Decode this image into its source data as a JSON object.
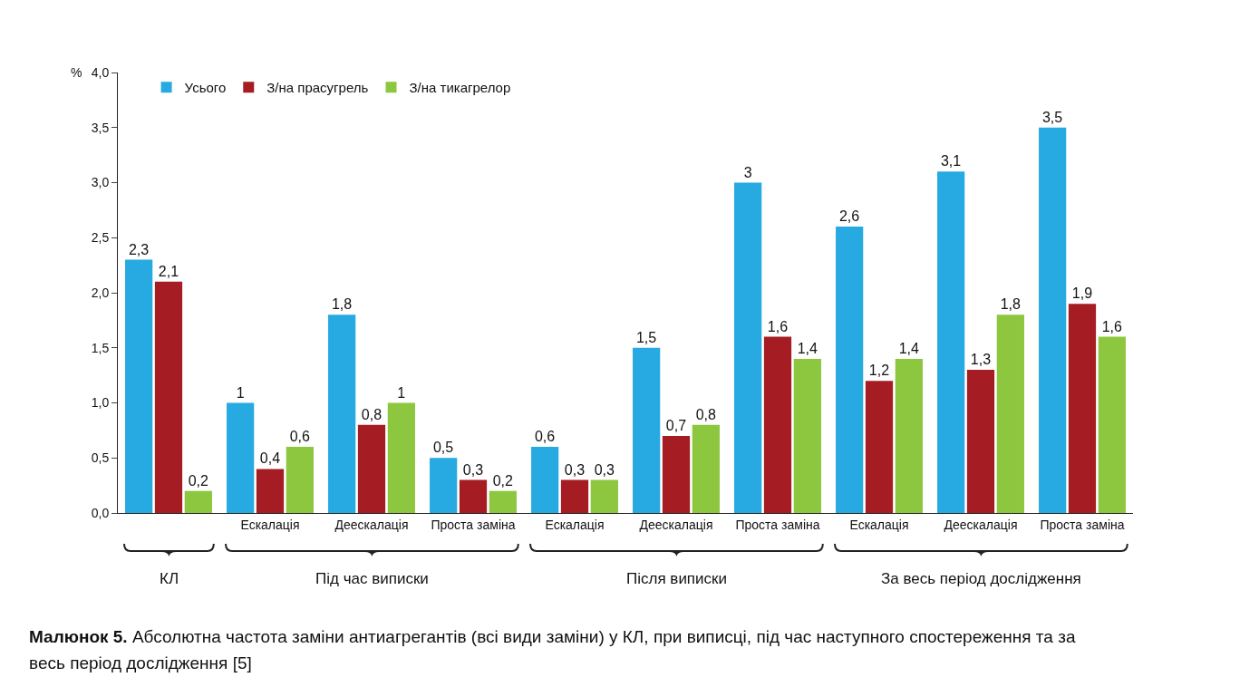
{
  "chart_data": {
    "type": "bar",
    "ylabel": "%",
    "categories": [
      null,
      "Ескалація",
      "Деескалація",
      "Проста заміна",
      "Ескалація",
      "Деескалація",
      "Проста заміна",
      "Ескалація",
      "Деескалація",
      "Проста заміна"
    ],
    "series": [
      {
        "name": "Усього",
        "color": "#27aae1",
        "values": [
          2.3,
          1,
          1.8,
          0.5,
          0.6,
          1.5,
          3,
          2.6,
          3.1,
          3.5
        ],
        "value_labels": [
          "2,3",
          "1",
          "1,8",
          "0,5",
          "0,6",
          "1,5",
          "3",
          "2,6",
          "3,1",
          "3,5"
        ]
      },
      {
        "name": "З/на прасугрель",
        "color": "#a51d23",
        "values": [
          2.1,
          0.4,
          0.8,
          0.3,
          0.3,
          0.7,
          1.6,
          1.2,
          1.3,
          1.9
        ],
        "value_labels": [
          "2,1",
          "0,4",
          "0,8",
          "0,3",
          "0,3",
          "0,7",
          "1,6",
          "1,2",
          "1,3",
          "1,9"
        ]
      },
      {
        "name": "З/на тикагрелор",
        "color": "#8dc63f",
        "values": [
          0.2,
          0.6,
          1,
          0.2,
          0.3,
          0.8,
          1.4,
          1.4,
          1.8,
          1.6
        ],
        "value_labels": [
          "0,2",
          "0,6",
          "1",
          "0,2",
          "0,3",
          "0,8",
          "1,4",
          "1,4",
          "1,8",
          "1,6"
        ]
      }
    ],
    "ylim": [
      0,
      4
    ],
    "yticks": [
      {
        "value": 0,
        "label": "0,0"
      },
      {
        "value": 0.5,
        "label": "0,5"
      },
      {
        "value": 1,
        "label": "1,0"
      },
      {
        "value": 1.5,
        "label": "1,5"
      },
      {
        "value": 2,
        "label": "2,0"
      },
      {
        "value": 2.5,
        "label": "2,5"
      },
      {
        "value": 3,
        "label": "3,0"
      },
      {
        "value": 3.5,
        "label": "3,5"
      },
      {
        "value": 4,
        "label": "4,0"
      }
    ],
    "grid": false,
    "legend": "top left",
    "annotations": [
      "КЛ",
      "Під час виписки",
      "Після виписки",
      "За весь період дослідження",
      "Малюнок 5. Абсолютна частота заміни антиагрегантів (всі види заміни) у КЛ, при виписці, під час наступного спостереження та за весь період дослідження [5]"
    ]
  }
}
